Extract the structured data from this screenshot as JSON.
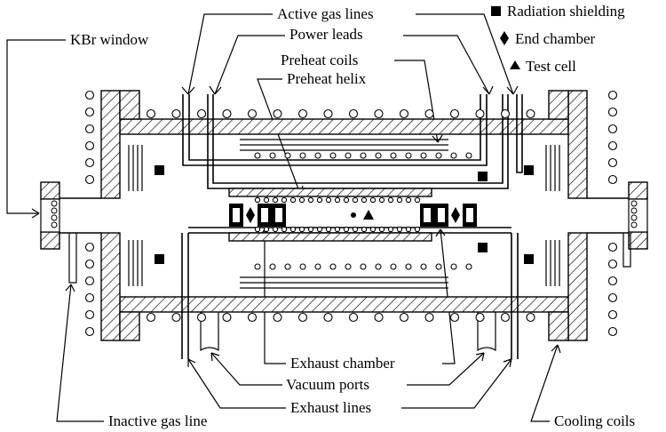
{
  "labels": {
    "active_gas_lines": "Active gas lines",
    "power_leads": "Power leads",
    "kbr_window": "KBr window",
    "preheat_coils": "Preheat coils",
    "preheat_helix": "Preheat helix",
    "exhaust_chamber": "Exhaust chamber",
    "vacuum_ports": "Vacuum ports",
    "exhaust_lines": "Exhaust lines",
    "inactive_gas_line": "Inactive gas line",
    "cooling_coils": "Cooling coils"
  },
  "legend": {
    "radiation_shielding": {
      "symbol": "square-icon",
      "text": "Radiation shielding"
    },
    "end_chamber": {
      "symbol": "diamond-icon",
      "text": "End chamber"
    },
    "test_cell": {
      "symbol": "triangle-icon",
      "text": "Test cell"
    }
  }
}
